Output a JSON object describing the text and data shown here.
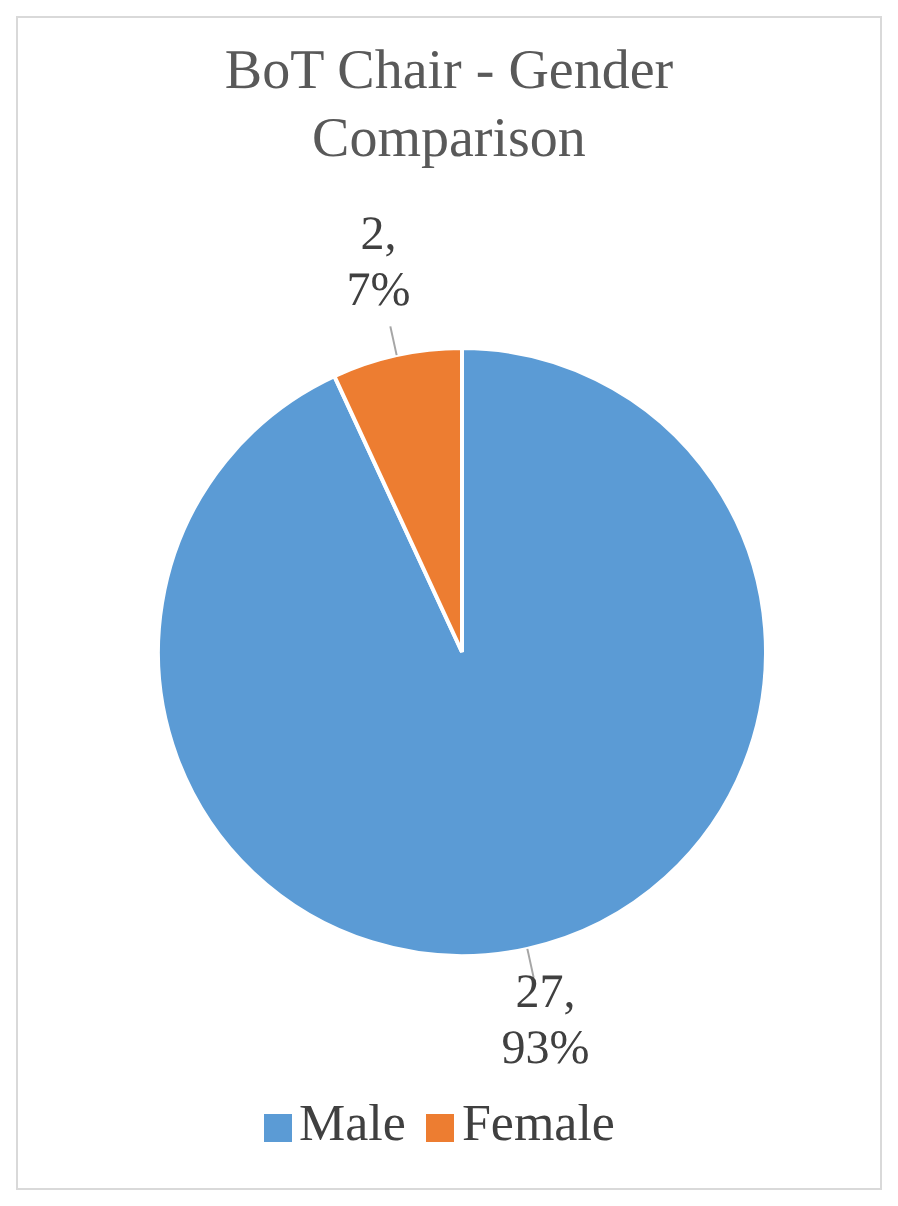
{
  "chart_data": {
    "type": "pie",
    "title": "BoT Chair - Gender Comparison",
    "categories": [
      "Male",
      "Female"
    ],
    "values": [
      27,
      2
    ],
    "colors": [
      "#5b9bd5",
      "#ed7d31"
    ],
    "value_labels": [
      "27, 93%",
      "2, 7%"
    ],
    "legend": "bottom"
  }
}
